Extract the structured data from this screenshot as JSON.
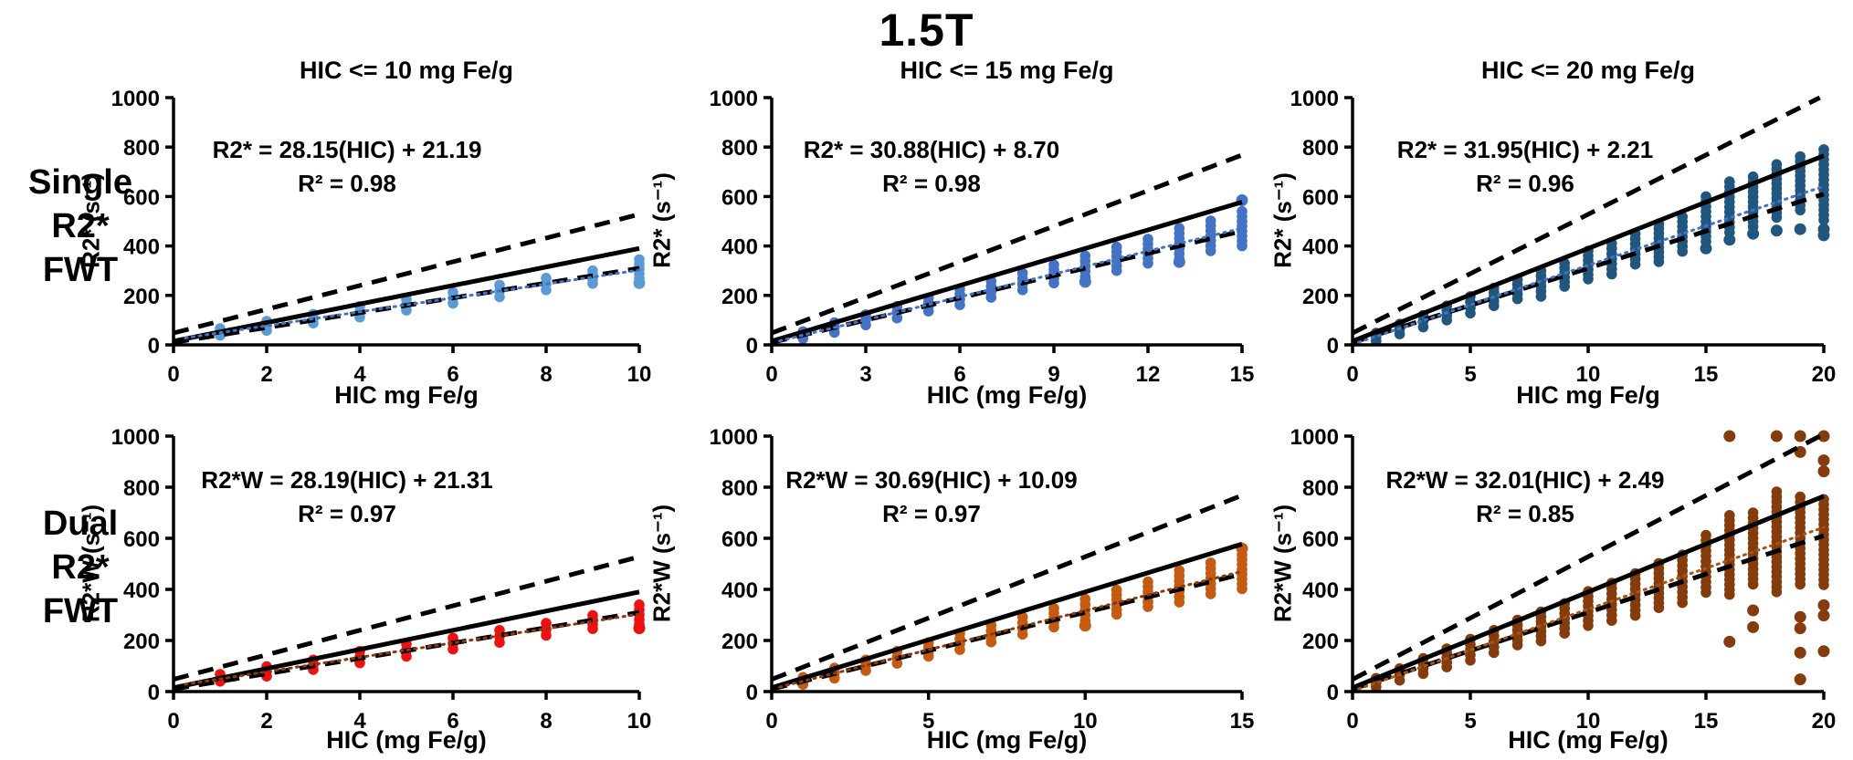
{
  "title": "1.5T",
  "rows": [
    {
      "lines": [
        "Single",
        "R2*",
        "FWT"
      ]
    },
    {
      "lines": [
        "Dual",
        "R2*",
        "FWT"
      ]
    }
  ],
  "reference_lines": {
    "solid": {
      "slope": 37.5,
      "intercept": 15
    },
    "dashed_upper": {
      "slope": 48,
      "intercept": 48
    },
    "dashed_lower": {
      "slope": 30,
      "intercept": 10
    }
  },
  "chart_data": [
    {
      "type": "scatter",
      "title": "HIC <= 10 mg Fe/g",
      "equation": "R2* = 28.15(HIC) + 21.19",
      "r2": "R² = 0.98",
      "fit": {
        "slope": 28.15,
        "intercept": 21.19
      },
      "xlabel": "HIC mg Fe/g",
      "ylabel": "R2* (s⁻¹)",
      "xlim": [
        0,
        10
      ],
      "ylim": [
        0,
        1000
      ],
      "xticks": [
        0,
        2,
        4,
        6,
        8,
        10
      ],
      "yticks": [
        0,
        200,
        400,
        600,
        800,
        1000
      ],
      "point_color": "#5B9BD5",
      "fit_color": "#4472C4",
      "clusters": [
        [
          1,
          38,
          66
        ],
        [
          2,
          58,
          96
        ],
        [
          3,
          88,
          124
        ],
        [
          4,
          112,
          156
        ],
        [
          5,
          140,
          184
        ],
        [
          6,
          168,
          212
        ],
        [
          7,
          194,
          242
        ],
        [
          8,
          222,
          270
        ],
        [
          9,
          248,
          300
        ],
        [
          10,
          268,
          345
        ]
      ],
      "outliers": [
        [
          10,
          250
        ]
      ]
    },
    {
      "type": "scatter",
      "title": "HIC <= 15 mg Fe/g",
      "equation": "R2* = 30.88(HIC) + 8.70",
      "r2": "R² = 0.98",
      "fit": {
        "slope": 30.88,
        "intercept": 8.7
      },
      "xlabel": "HIC (mg Fe/g)",
      "ylabel": "R2* (s⁻¹)",
      "xlim": [
        0,
        15
      ],
      "ylim": [
        0,
        1000
      ],
      "xticks": [
        0,
        3,
        6,
        9,
        12,
        15
      ],
      "yticks": [
        0,
        200,
        400,
        600,
        800,
        1000
      ],
      "point_color": "#4472C4",
      "fit_color": "#4472C4",
      "clusters": [
        [
          1,
          26,
          54
        ],
        [
          2,
          50,
          90
        ],
        [
          3,
          80,
          122
        ],
        [
          4,
          108,
          156
        ],
        [
          5,
          136,
          190
        ],
        [
          6,
          162,
          226
        ],
        [
          7,
          192,
          258
        ],
        [
          8,
          222,
          290
        ],
        [
          9,
          250,
          324
        ],
        [
          10,
          276,
          360
        ],
        [
          11,
          300,
          396
        ],
        [
          12,
          330,
          428
        ],
        [
          13,
          348,
          472
        ],
        [
          14,
          380,
          502
        ],
        [
          15,
          400,
          540
        ]
      ],
      "outliers": [
        [
          15,
          585
        ],
        [
          10,
          255
        ],
        [
          13,
          335
        ]
      ]
    },
    {
      "type": "scatter",
      "title": "HIC <= 20 mg Fe/g",
      "equation": "R2* = 31.95(HIC) + 2.21",
      "r2": "R² = 0.96",
      "fit": {
        "slope": 31.95,
        "intercept": 2.21
      },
      "xlabel": "HIC mg Fe/g",
      "ylabel": "R2* (s⁻¹)",
      "xlim": [
        0,
        20
      ],
      "ylim": [
        0,
        1000
      ],
      "xticks": [
        0,
        5,
        10,
        15,
        20
      ],
      "yticks": [
        0,
        200,
        400,
        600,
        800,
        1000
      ],
      "point_color": "#21567E",
      "fit_color": "#4472C4",
      "clusters": [
        [
          1,
          16,
          48
        ],
        [
          2,
          44,
          84
        ],
        [
          3,
          72,
          120
        ],
        [
          4,
          100,
          158
        ],
        [
          5,
          128,
          196
        ],
        [
          6,
          158,
          230
        ],
        [
          7,
          186,
          264
        ],
        [
          8,
          196,
          300
        ],
        [
          9,
          236,
          330
        ],
        [
          10,
          266,
          380
        ],
        [
          11,
          286,
          410
        ],
        [
          12,
          326,
          450
        ],
        [
          13,
          336,
          490
        ],
        [
          14,
          378,
          518
        ],
        [
          15,
          418,
          600
        ],
        [
          16,
          455,
          660
        ],
        [
          17,
          478,
          680
        ],
        [
          18,
          515,
          730
        ],
        [
          19,
          545,
          762
        ],
        [
          20,
          505,
          790
        ]
      ],
      "outliers": [
        [
          15,
          390
        ],
        [
          16,
          425
        ],
        [
          17,
          450
        ],
        [
          18,
          462
        ],
        [
          19,
          468
        ],
        [
          20,
          468
        ],
        [
          20,
          443
        ]
      ]
    },
    {
      "type": "scatter",
      "title": "",
      "equation": "R2*W = 28.19(HIC) + 21.31",
      "r2": "R² = 0.97",
      "fit": {
        "slope": 28.19,
        "intercept": 21.31
      },
      "xlabel": "HIC (mg Fe/g)",
      "ylabel": "R2*W (s⁻¹)",
      "xlim": [
        0,
        10
      ],
      "ylim": [
        0,
        1000
      ],
      "xticks": [
        0,
        2,
        4,
        6,
        8,
        10
      ],
      "yticks": [
        0,
        200,
        400,
        600,
        800,
        1000
      ],
      "point_color": "#EE1111",
      "fit_color": "#8B3A0E",
      "clusters": [
        [
          1,
          40,
          68
        ],
        [
          2,
          60,
          98
        ],
        [
          3,
          86,
          124
        ],
        [
          4,
          112,
          158
        ],
        [
          5,
          138,
          186
        ],
        [
          6,
          166,
          210
        ],
        [
          7,
          192,
          240
        ],
        [
          8,
          220,
          268
        ],
        [
          9,
          246,
          298
        ],
        [
          10,
          262,
          340
        ]
      ],
      "outliers": [
        [
          10,
          248
        ]
      ]
    },
    {
      "type": "scatter",
      "title": "",
      "equation": "R2*W = 30.69(HIC) + 10.09",
      "r2": "R² = 0.97",
      "fit": {
        "slope": 30.69,
        "intercept": 10.09
      },
      "xlabel": "HIC (mg Fe/g)",
      "ylabel": "R2*W (s⁻¹)",
      "xlim": [
        0,
        15
      ],
      "ylim": [
        0,
        1000
      ],
      "xticks": [
        0,
        5,
        10,
        15
      ],
      "yticks": [
        0,
        200,
        400,
        600,
        800,
        1000
      ],
      "point_color": "#C55A11",
      "fit_color": "#8B3A0E",
      "clusters": [
        [
          1,
          28,
          56
        ],
        [
          2,
          52,
          92
        ],
        [
          3,
          82,
          124
        ],
        [
          4,
          110,
          158
        ],
        [
          5,
          138,
          192
        ],
        [
          6,
          164,
          228
        ],
        [
          7,
          194,
          260
        ],
        [
          8,
          224,
          292
        ],
        [
          9,
          252,
          326
        ],
        [
          10,
          278,
          362
        ],
        [
          11,
          302,
          398
        ],
        [
          12,
          332,
          430
        ],
        [
          13,
          350,
          474
        ],
        [
          14,
          382,
          504
        ],
        [
          15,
          402,
          535
        ]
      ],
      "outliers": [
        [
          15,
          560
        ],
        [
          10,
          258
        ]
      ]
    },
    {
      "type": "scatter",
      "title": "",
      "equation": "R2*W = 32.01(HIC) + 2.49",
      "r2": "R² = 0.85",
      "fit": {
        "slope": 32.01,
        "intercept": 2.49
      },
      "xlabel": "HIC (mg Fe/g)",
      "ylabel": "R2*W (s⁻¹)",
      "xlim": [
        0,
        20
      ],
      "ylim": [
        0,
        1000
      ],
      "xticks": [
        0,
        5,
        10,
        15,
        20
      ],
      "yticks": [
        0,
        200,
        400,
        600,
        800,
        1000
      ],
      "point_color": "#843C0C",
      "fit_color": "#A85418",
      "clusters": [
        [
          1,
          18,
          52
        ],
        [
          2,
          44,
          90
        ],
        [
          3,
          70,
          130
        ],
        [
          4,
          96,
          168
        ],
        [
          5,
          122,
          205
        ],
        [
          6,
          152,
          240
        ],
        [
          7,
          182,
          280
        ],
        [
          8,
          198,
          312
        ],
        [
          9,
          228,
          345
        ],
        [
          10,
          258,
          392
        ],
        [
          11,
          278,
          425
        ],
        [
          12,
          298,
          462
        ],
        [
          13,
          328,
          502
        ],
        [
          14,
          348,
          535
        ],
        [
          15,
          388,
          612
        ],
        [
          16,
          380,
          690
        ],
        [
          17,
          420,
          700
        ],
        [
          18,
          390,
          782
        ],
        [
          19,
          420,
          762
        ],
        [
          20,
          418,
          752
        ]
      ],
      "outliers": [
        [
          16,
          1000
        ],
        [
          18,
          1000
        ],
        [
          19,
          1000
        ],
        [
          20,
          1000
        ],
        [
          19,
          938
        ],
        [
          20,
          905
        ],
        [
          20,
          862
        ],
        [
          16,
          195
        ],
        [
          17,
          318
        ],
        [
          17,
          252
        ],
        [
          19,
          292
        ],
        [
          19,
          248
        ],
        [
          19,
          152
        ],
        [
          19,
          48
        ],
        [
          20,
          338
        ],
        [
          20,
          298
        ],
        [
          20,
          158
        ]
      ]
    }
  ]
}
